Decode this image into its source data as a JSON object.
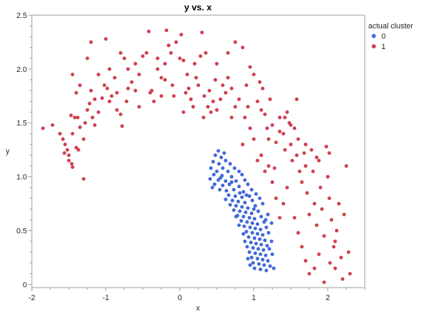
{
  "chart_data": {
    "type": "scatter",
    "title": "y vs. x",
    "xlabel": "x",
    "ylabel": "y",
    "xlim": [
      -2,
      2.5
    ],
    "ylim": [
      -0.03,
      2.5
    ],
    "xticks": [
      "-2",
      "-1",
      "0",
      "1",
      "2"
    ],
    "yticks": [
      "0",
      "0.5",
      "1.0",
      "1.5",
      "2.0",
      "2.5"
    ],
    "grid": false,
    "legend": {
      "title": "actual cluster",
      "position": "top-right",
      "entries": [
        {
          "label": "0",
          "color": "#4169d8"
        },
        {
          "label": "1",
          "color": "#d23f4e"
        }
      ]
    },
    "series": [
      {
        "name": "0",
        "color": "#4169d8",
        "points": [
          [
            0.52,
            1.24
          ],
          [
            0.6,
            1.22
          ],
          [
            0.48,
            1.2
          ],
          [
            0.56,
            1.18
          ],
          [
            0.62,
            1.15
          ],
          [
            0.45,
            1.14
          ],
          [
            0.53,
            1.12
          ],
          [
            0.68,
            1.12
          ],
          [
            0.42,
            1.08
          ],
          [
            0.58,
            1.08
          ],
          [
            0.74,
            1.08
          ],
          [
            0.5,
            1.05
          ],
          [
            0.65,
            1.05
          ],
          [
            0.8,
            1.05
          ],
          [
            0.46,
            1.02
          ],
          [
            0.57,
            1.01
          ],
          [
            0.7,
            1.0
          ],
          [
            0.84,
            1.02
          ],
          [
            0.41,
            0.98
          ],
          [
            0.52,
            0.97
          ],
          [
            0.62,
            0.96
          ],
          [
            0.76,
            0.96
          ],
          [
            0.88,
            0.97
          ],
          [
            0.47,
            0.93
          ],
          [
            0.58,
            0.92
          ],
          [
            0.67,
            0.93
          ],
          [
            0.8,
            0.91
          ],
          [
            0.92,
            0.93
          ],
          [
            0.54,
            0.88
          ],
          [
            0.63,
            0.87
          ],
          [
            0.73,
            0.88
          ],
          [
            0.86,
            0.86
          ],
          [
            0.97,
            0.88
          ],
          [
            0.66,
            0.83
          ],
          [
            0.75,
            0.82
          ],
          [
            0.84,
            0.81
          ],
          [
            0.94,
            0.82
          ],
          [
            1.03,
            0.84
          ],
          [
            0.62,
            0.79
          ],
          [
            0.71,
            0.78
          ],
          [
            0.79,
            0.77
          ],
          [
            0.88,
            0.76
          ],
          [
            0.98,
            0.78
          ],
          [
            1.08,
            0.8
          ],
          [
            0.68,
            0.74
          ],
          [
            0.76,
            0.73
          ],
          [
            0.84,
            0.72
          ],
          [
            0.92,
            0.71
          ],
          [
            1.02,
            0.73
          ],
          [
            1.12,
            0.75
          ],
          [
            0.73,
            0.69
          ],
          [
            0.81,
            0.68
          ],
          [
            0.89,
            0.67
          ],
          [
            0.97,
            0.66
          ],
          [
            1.06,
            0.68
          ],
          [
            0.78,
            0.64
          ],
          [
            0.86,
            0.63
          ],
          [
            0.94,
            0.62
          ],
          [
            1.01,
            0.61
          ],
          [
            1.1,
            0.63
          ],
          [
            1.19,
            0.65
          ],
          [
            0.83,
            0.59
          ],
          [
            0.91,
            0.58
          ],
          [
            0.98,
            0.57
          ],
          [
            1.05,
            0.56
          ],
          [
            1.14,
            0.58
          ],
          [
            0.87,
            0.54
          ],
          [
            0.95,
            0.53
          ],
          [
            1.02,
            0.52
          ],
          [
            1.09,
            0.51
          ],
          [
            1.17,
            0.53
          ],
          [
            0.9,
            0.49
          ],
          [
            0.98,
            0.48
          ],
          [
            1.05,
            0.47
          ],
          [
            1.12,
            0.46
          ],
          [
            1.2,
            0.48
          ],
          [
            0.93,
            0.44
          ],
          [
            1.01,
            0.43
          ],
          [
            1.08,
            0.42
          ],
          [
            1.15,
            0.41
          ],
          [
            0.88,
            0.4
          ],
          [
            0.96,
            0.39
          ],
          [
            1.03,
            0.38
          ],
          [
            1.1,
            0.37
          ],
          [
            1.18,
            0.36
          ],
          [
            0.91,
            0.35
          ],
          [
            0.99,
            0.34
          ],
          [
            1.06,
            0.33
          ],
          [
            1.13,
            0.32
          ],
          [
            1.21,
            0.33
          ],
          [
            0.94,
            0.3
          ],
          [
            1.02,
            0.29
          ],
          [
            1.09,
            0.28
          ],
          [
            1.16,
            0.27
          ],
          [
            0.97,
            0.25
          ],
          [
            1.05,
            0.24
          ],
          [
            1.12,
            0.23
          ],
          [
            1.19,
            0.22
          ],
          [
            0.99,
            0.2
          ],
          [
            1.07,
            0.19
          ],
          [
            1.14,
            0.18
          ],
          [
            1.22,
            0.17
          ],
          [
            1.01,
            0.15
          ],
          [
            1.09,
            0.14
          ],
          [
            1.17,
            0.13
          ],
          [
            1.27,
            0.15
          ],
          [
            0.95,
            0.18
          ],
          [
            0.92,
            0.24
          ],
          [
            1.25,
            0.28
          ],
          [
            1.24,
            0.4
          ],
          [
            0.86,
            0.47
          ],
          [
            0.81,
            0.85
          ],
          [
            0.55,
            0.99
          ],
          [
            0.44,
            0.9
          ],
          [
            0.76,
            0.63
          ],
          [
            1.16,
            0.6
          ],
          [
            1.24,
            0.57
          ],
          [
            0.8,
            0.55
          ],
          [
            1.0,
            0.7
          ],
          [
            0.9,
            0.83
          ],
          [
            0.7,
            0.95
          ]
        ]
      },
      {
        "name": "1",
        "color": "#d23f4e",
        "points": [
          [
            -1.85,
            1.45
          ],
          [
            -1.72,
            1.48
          ],
          [
            -1.62,
            1.4
          ],
          [
            -1.58,
            1.35
          ],
          [
            -1.55,
            1.3
          ],
          [
            -1.52,
            1.25
          ],
          [
            -1.5,
            1.2
          ],
          [
            -1.56,
            1.22
          ],
          [
            -1.46,
            1.12
          ],
          [
            -1.45,
            1.09
          ],
          [
            -1.4,
            1.27
          ],
          [
            -1.37,
            1.25
          ],
          [
            -1.47,
            1.57
          ],
          [
            -1.42,
            1.55
          ],
          [
            -1.35,
            1.46
          ],
          [
            -1.3,
            1.35
          ],
          [
            -1.45,
            1.4
          ],
          [
            -1.3,
            0.98
          ],
          [
            -1.25,
            1.62
          ],
          [
            -1.22,
            1.68
          ],
          [
            -1.4,
            1.78
          ],
          [
            -1.45,
            1.95
          ],
          [
            -1.35,
            1.85
          ],
          [
            -1.2,
            1.8
          ],
          [
            -1.18,
            1.55
          ],
          [
            -1.1,
            1.6
          ],
          [
            -1.15,
            1.72
          ],
          [
            -1.05,
            1.73
          ],
          [
            -1.02,
            1.85
          ],
          [
            -0.98,
            1.82
          ],
          [
            -0.92,
            1.75
          ],
          [
            -0.88,
            1.92
          ],
          [
            -0.85,
            1.62
          ],
          [
            -0.8,
            1.58
          ],
          [
            -0.78,
            1.47
          ],
          [
            -0.72,
            1.7
          ],
          [
            -0.7,
            1.82
          ],
          [
            -0.65,
            1.88
          ],
          [
            -0.6,
            1.8
          ],
          [
            -0.55,
            1.95
          ],
          [
            -0.5,
            2.12
          ],
          [
            -0.45,
            2.15
          ],
          [
            -0.42,
            2.35
          ],
          [
            -0.38,
            1.8
          ],
          [
            -0.35,
            1.7
          ],
          [
            -0.3,
            2.0
          ],
          [
            -0.25,
            1.92
          ],
          [
            -0.2,
            2.05
          ],
          [
            -0.18,
            2.36
          ],
          [
            -0.15,
            2.22
          ],
          [
            -0.12,
            2.15
          ],
          [
            -0.1,
            1.85
          ],
          [
            -0.08,
            1.75
          ],
          [
            -0.05,
            2.25
          ],
          [
            0.0,
            2.1
          ],
          [
            0.02,
            2.32
          ],
          [
            0.05,
            2.08
          ],
          [
            0.1,
            1.95
          ],
          [
            0.12,
            1.82
          ],
          [
            0.15,
            1.72
          ],
          [
            0.2,
            2.05
          ],
          [
            0.22,
            1.92
          ],
          [
            0.25,
            1.85
          ],
          [
            0.28,
            2.12
          ],
          [
            0.3,
            2.34
          ],
          [
            0.33,
            1.75
          ],
          [
            0.35,
            2.15
          ],
          [
            0.38,
            1.65
          ],
          [
            0.4,
            1.8
          ],
          [
            0.45,
            1.7
          ],
          [
            0.48,
            1.9
          ],
          [
            0.5,
            2.05
          ],
          [
            0.55,
            1.72
          ],
          [
            0.58,
            1.85
          ],
          [
            0.62,
            1.78
          ],
          [
            0.65,
            1.92
          ],
          [
            0.7,
            1.82
          ],
          [
            0.75,
            1.65
          ],
          [
            0.8,
            1.72
          ],
          [
            0.85,
            2.2
          ],
          [
            0.88,
            1.55
          ],
          [
            0.9,
            1.85
          ],
          [
            0.95,
            2.02
          ],
          [
            1.0,
            1.95
          ],
          [
            1.05,
            1.7
          ],
          [
            1.08,
            1.88
          ],
          [
            1.12,
            1.82
          ],
          [
            1.15,
            1.58
          ],
          [
            1.18,
            1.45
          ],
          [
            1.2,
            1.35
          ],
          [
            1.25,
            1.48
          ],
          [
            1.3,
            1.32
          ],
          [
            1.35,
            1.55
          ],
          [
            1.4,
            1.4
          ],
          [
            1.42,
            1.25
          ],
          [
            1.45,
            1.6
          ],
          [
            1.48,
            1.5
          ],
          [
            1.5,
            1.3
          ],
          [
            1.52,
            1.15
          ],
          [
            1.55,
            1.45
          ],
          [
            1.58,
            1.2
          ],
          [
            1.6,
            1.35
          ],
          [
            1.62,
            1.05
          ],
          [
            1.65,
            0.95
          ],
          [
            1.68,
            1.22
          ],
          [
            1.7,
            1.1
          ],
          [
            1.72,
            0.85
          ],
          [
            1.75,
            0.65
          ],
          [
            1.78,
            1.25
          ],
          [
            1.8,
            1.05
          ],
          [
            1.82,
            0.75
          ],
          [
            1.85,
            0.55
          ],
          [
            1.88,
            1.15
          ],
          [
            1.9,
            0.9
          ],
          [
            1.92,
            0.7
          ],
          [
            1.95,
            0.45
          ],
          [
            1.98,
            1.28
          ],
          [
            2.0,
            1.0
          ],
          [
            2.02,
            0.8
          ],
          [
            2.05,
            0.6
          ],
          [
            2.08,
            0.35
          ],
          [
            2.1,
            0.15
          ],
          [
            2.12,
            0.5
          ],
          [
            2.15,
            0.75
          ],
          [
            2.18,
            0.25
          ],
          [
            2.2,
            0.05
          ],
          [
            2.22,
            0.65
          ],
          [
            2.25,
            1.1
          ],
          [
            2.28,
            0.3
          ],
          [
            2.3,
            0.1
          ],
          [
            1.55,
            0.62
          ],
          [
            1.6,
            0.48
          ],
          [
            1.65,
            0.35
          ],
          [
            1.7,
            0.22
          ],
          [
            1.75,
            0.1
          ],
          [
            1.82,
            0.15
          ],
          [
            1.88,
            0.28
          ],
          [
            1.95,
            0.02
          ],
          [
            2.03,
            0.2
          ],
          [
            2.1,
            0.4
          ],
          [
            1.45,
            0.9
          ],
          [
            1.4,
            0.75
          ],
          [
            1.35,
            0.62
          ],
          [
            1.3,
            0.8
          ],
          [
            1.25,
            0.95
          ],
          [
            1.2,
            1.1
          ],
          [
            1.15,
            1.05
          ],
          [
            1.1,
            1.2
          ],
          [
            1.05,
            1.15
          ],
          [
            1.0,
            1.35
          ],
          [
            0.95,
            1.45
          ],
          [
            0.85,
            1.3
          ],
          [
            -0.3,
            2.1
          ],
          [
            -0.6,
            2.05
          ],
          [
            -0.75,
            2.1
          ],
          [
            -0.95,
            2.0
          ],
          [
            -1.1,
            1.95
          ],
          [
            -1.25,
            2.1
          ],
          [
            -1.2,
            2.25
          ],
          [
            -1.0,
            2.28
          ],
          [
            -0.8,
            2.15
          ],
          [
            -0.7,
            2.0
          ],
          [
            -0.55,
            1.65
          ],
          [
            -0.2,
            1.9
          ],
          [
            0.05,
            1.6
          ],
          [
            0.18,
            1.65
          ],
          [
            0.32,
            1.55
          ],
          [
            0.5,
            1.62
          ],
          [
            0.65,
            2.15
          ],
          [
            0.75,
            2.25
          ],
          [
            0.92,
            1.65
          ],
          [
            1.1,
            1.62
          ],
          [
            1.22,
            1.72
          ],
          [
            1.35,
            1.42
          ],
          [
            1.5,
            1.48
          ],
          [
            1.7,
            1.3
          ],
          [
            1.85,
            1.18
          ],
          [
            2.02,
            1.22
          ],
          [
            1.42,
            1.55
          ],
          [
            1.58,
            1.72
          ],
          [
            -1.5,
            1.15
          ],
          [
            -1.38,
            1.55
          ],
          [
            -1.28,
            1.5
          ],
          [
            -1.15,
            1.48
          ],
          [
            -0.95,
            1.7
          ],
          [
            -0.85,
            1.78
          ],
          [
            -0.4,
            1.78
          ],
          [
            -0.25,
            1.75
          ],
          [
            0.08,
            1.78
          ],
          [
            0.42,
            1.6
          ],
          [
            0.7,
            1.55
          ],
          [
            1.28,
            1.08
          ]
        ]
      }
    ]
  }
}
